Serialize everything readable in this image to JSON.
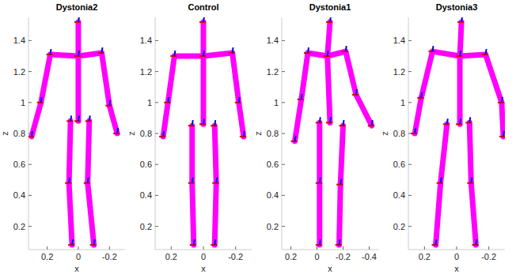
{
  "chart_data": [
    {
      "type": "skeleton",
      "title": "Dystonia2",
      "x_label": "x",
      "y_label": "z",
      "color": "#ff00ff",
      "xlim": [
        0.32,
        -0.3
      ],
      "xticks": [
        0.2,
        0,
        -0.2
      ],
      "ylim": [
        0.05,
        1.55
      ],
      "yticks": [
        0.2,
        0.4,
        0.6,
        0.8,
        1,
        1.2,
        1.4
      ],
      "x": [
        0,
        0,
        0,
        0.18,
        0.24,
        0.3,
        -0.15,
        -0.2,
        -0.25,
        0.05,
        0.06,
        0.04,
        -0.07,
        -0.06,
        -0.1
      ],
      "values": [
        1.52,
        1.3,
        0.88,
        1.31,
        1.0,
        0.78,
        1.32,
        0.98,
        0.8,
        0.88,
        0.48,
        0.08,
        0.88,
        0.48,
        0.08
      ]
    },
    {
      "type": "skeleton",
      "title": "Control",
      "x_label": "x",
      "y_label": "z",
      "color": "#ff00ff",
      "xlim": [
        0.3,
        -0.3
      ],
      "xticks": [
        0.2,
        0,
        -0.2
      ],
      "ylim": [
        0.05,
        1.55
      ],
      "yticks": [
        0.2,
        0.4,
        0.6,
        0.8,
        1,
        1.2,
        1.4
      ],
      "x": [
        0,
        0,
        0,
        0.18,
        0.22,
        0.25,
        -0.18,
        -0.22,
        -0.25,
        0.07,
        0.07,
        0.06,
        -0.07,
        -0.08,
        -0.07
      ],
      "values": [
        1.52,
        1.3,
        0.86,
        1.3,
        1.0,
        0.78,
        1.32,
        1.0,
        0.78,
        0.85,
        0.48,
        0.08,
        0.85,
        0.48,
        0.08
      ]
    },
    {
      "type": "skeleton",
      "title": "Dystonia1",
      "x_label": "x",
      "y_label": "z",
      "color": "#ff00ff",
      "xlim": [
        0.27,
        -0.47
      ],
      "xticks": [
        0.2,
        0,
        -0.2,
        -0.4
      ],
      "ylim": [
        0.05,
        1.55
      ],
      "yticks": [
        0.2,
        0.4,
        0.6,
        0.8,
        1,
        1.2,
        1.4
      ],
      "x": [
        -0.1,
        -0.08,
        -0.1,
        0.07,
        0.12,
        0.17,
        -0.22,
        -0.3,
        -0.42,
        -0.02,
        -0.02,
        -0.02,
        -0.2,
        -0.18,
        -0.17
      ],
      "values": [
        1.52,
        1.3,
        0.87,
        1.32,
        1.02,
        0.75,
        1.33,
        1.05,
        0.85,
        0.87,
        0.48,
        0.08,
        0.85,
        0.47,
        0.08
      ]
    },
    {
      "type": "skeleton",
      "title": "Dystonia3",
      "x_label": "x",
      "y_label": "z",
      "color": "#ff00ff",
      "xlim": [
        0.3,
        -0.3
      ],
      "xticks": [
        0.2,
        0,
        -0.2
      ],
      "ylim": [
        0.05,
        1.55
      ],
      "yticks": [
        0.2,
        0.4,
        0.6,
        0.8,
        1,
        1.2,
        1.4
      ],
      "x": [
        -0.03,
        -0.02,
        -0.02,
        0.15,
        0.22,
        0.26,
        -0.18,
        -0.28,
        -0.29,
        0.06,
        0.1,
        0.13,
        -0.08,
        -0.09,
        -0.12
      ],
      "values": [
        1.52,
        1.3,
        0.86,
        1.33,
        1.03,
        0.8,
        1.31,
        1.0,
        0.78,
        0.86,
        0.48,
        0.08,
        0.87,
        0.48,
        0.08
      ]
    }
  ]
}
